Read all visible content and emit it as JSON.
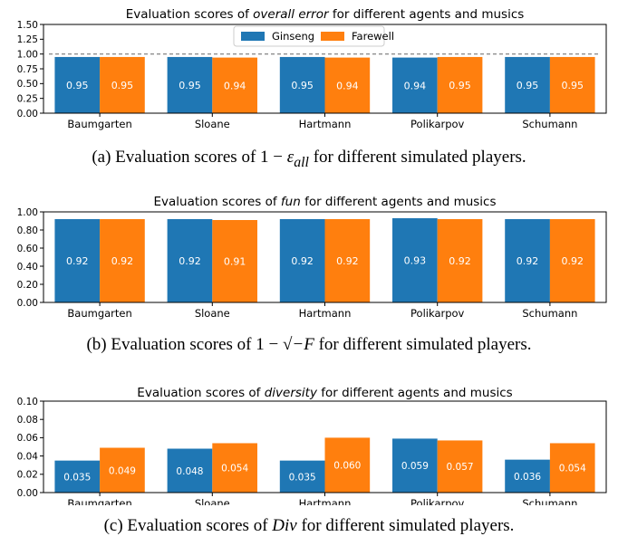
{
  "colors": {
    "ginseng": "#1f77b4",
    "farewell": "#ff7f0e"
  },
  "legend": [
    {
      "name": "Ginseng"
    },
    {
      "name": "Farewell"
    }
  ],
  "captions": {
    "a": {
      "pre": "(a) Evaluation scores of 1 − ",
      "math": "ε",
      "sub": "all",
      "post": " for different simulated players."
    },
    "b": {
      "pre": "(b) Evaluation scores of 1 − ",
      "math": "√−F",
      "post": " for different simulated players."
    },
    "c": {
      "pre": "(c) Evaluation scores of ",
      "math": "Div",
      "post": " for different simulated players."
    }
  },
  "chart_data": [
    {
      "type": "bar",
      "title": {
        "pre": "Evaluation scores of ",
        "em": "overall error",
        "post": " for different agents and musics"
      },
      "categories": [
        "Baumgarten",
        "Sloane",
        "Hartmann",
        "Polikarpov",
        "Schumann"
      ],
      "series": [
        {
          "name": "Ginseng",
          "values": [
            0.95,
            0.95,
            0.95,
            0.94,
            0.95
          ],
          "labels": [
            "0.95",
            "0.95",
            "0.95",
            "0.94",
            "0.95"
          ]
        },
        {
          "name": "Farewell",
          "values": [
            0.95,
            0.94,
            0.94,
            0.95,
            0.95
          ],
          "labels": [
            "0.95",
            "0.94",
            "0.94",
            "0.95",
            "0.95"
          ]
        }
      ],
      "ylim": [
        0,
        1.5
      ],
      "yticks": [
        "0.00",
        "0.25",
        "0.50",
        "0.75",
        "1.00",
        "1.25",
        "1.50"
      ],
      "reference_line": 1.0,
      "legend_position": "top-center"
    },
    {
      "type": "bar",
      "title": {
        "pre": "Evaluation scores of ",
        "em": "fun",
        "post": " for different agents and musics"
      },
      "categories": [
        "Baumgarten",
        "Sloane",
        "Hartmann",
        "Polikarpov",
        "Schumann"
      ],
      "series": [
        {
          "name": "Ginseng",
          "values": [
            0.92,
            0.92,
            0.92,
            0.93,
            0.92
          ],
          "labels": [
            "0.92",
            "0.92",
            "0.92",
            "0.93",
            "0.92"
          ]
        },
        {
          "name": "Farewell",
          "values": [
            0.92,
            0.91,
            0.92,
            0.92,
            0.92
          ],
          "labels": [
            "0.92",
            "0.91",
            "0.92",
            "0.92",
            "0.92"
          ]
        }
      ],
      "ylim": [
        0,
        1.0
      ],
      "yticks": [
        "0.00",
        "0.20",
        "0.40",
        "0.60",
        "0.80",
        "1.00"
      ]
    },
    {
      "type": "bar",
      "title": {
        "pre": "Evaluation scores of ",
        "em": "diversity",
        "post": " for different agents and musics"
      },
      "categories": [
        "Baumgarten",
        "Sloane",
        "Hartmann",
        "Polikarpov",
        "Schumann"
      ],
      "series": [
        {
          "name": "Ginseng",
          "values": [
            0.035,
            0.048,
            0.035,
            0.059,
            0.036
          ],
          "labels": [
            "0.035",
            "0.048",
            "0.035",
            "0.059",
            "0.036"
          ]
        },
        {
          "name": "Farewell",
          "values": [
            0.049,
            0.054,
            0.06,
            0.057,
            0.054
          ],
          "labels": [
            "0.049",
            "0.054",
            "0.060",
            "0.057",
            "0.054"
          ]
        }
      ],
      "ylim": [
        0,
        0.1
      ],
      "yticks": [
        "0.00",
        "0.02",
        "0.04",
        "0.06",
        "0.08",
        "0.10"
      ]
    }
  ]
}
